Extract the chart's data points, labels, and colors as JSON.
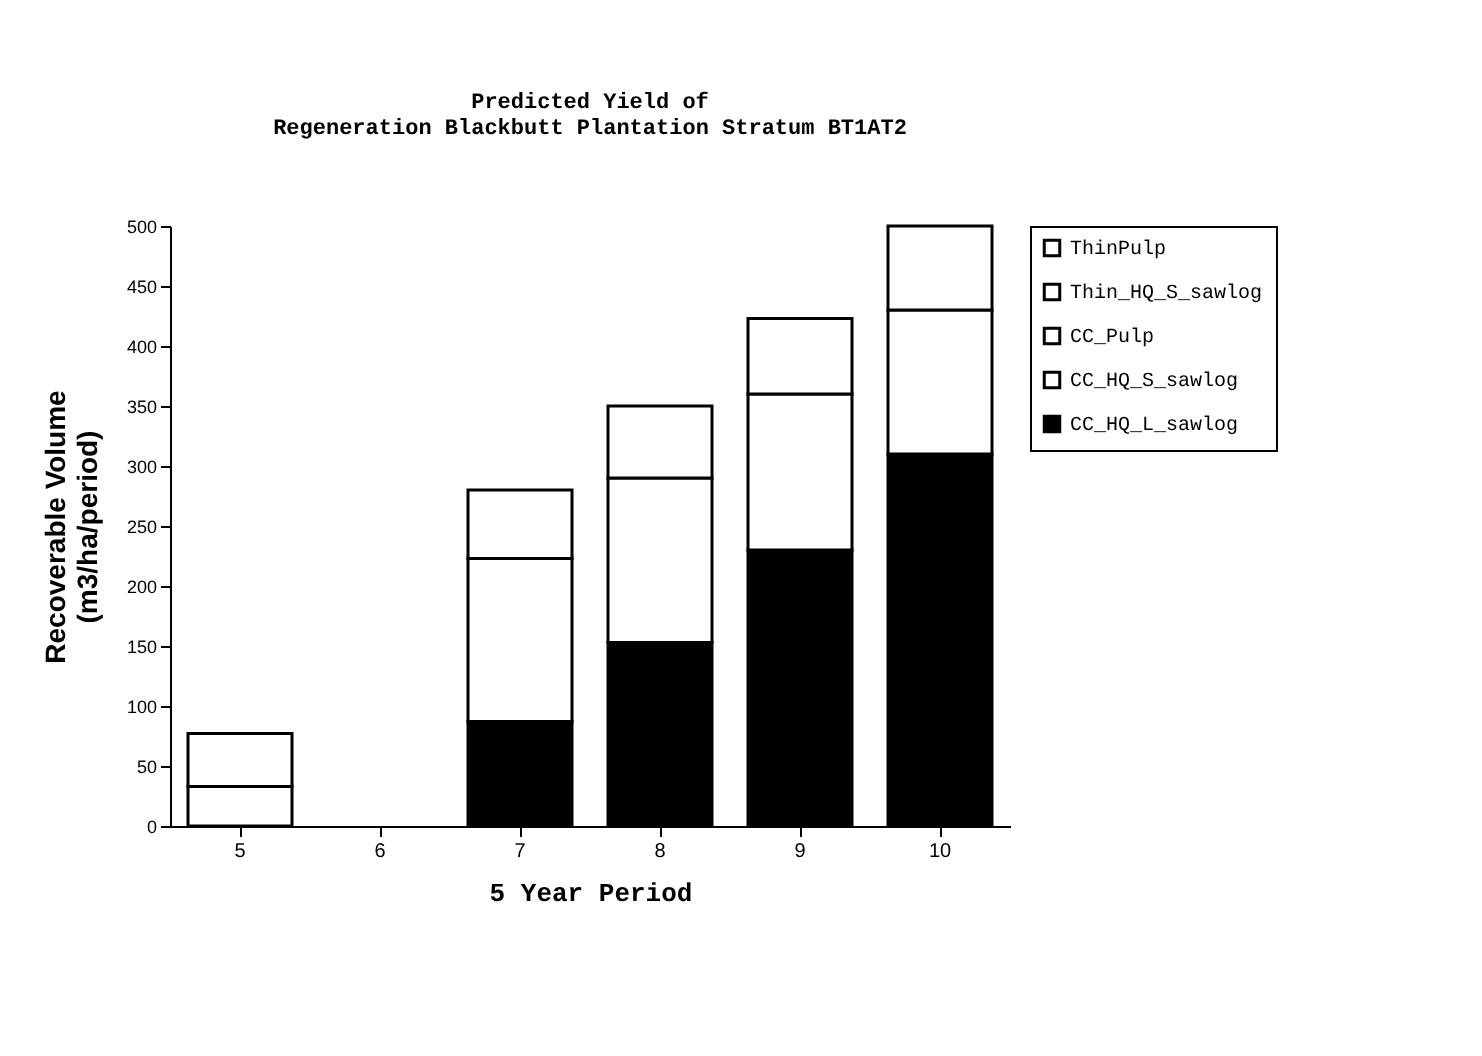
{
  "chart_data": {
    "type": "bar",
    "stacked": true,
    "title": "Predicted Yield of\nRegeneration Blackbutt Plantation Stratum BT1AT2",
    "xlabel": "5 Year Period",
    "ylabel": "Recoverable Volume\n(m3/ha/period)",
    "categories": [
      "5",
      "6",
      "7",
      "8",
      "9",
      "10"
    ],
    "series": [
      {
        "name": "CC_HQ_L_sawlog",
        "color": "#000000",
        "values": [
          0,
          0,
          87,
          153,
          230,
          310
        ]
      },
      {
        "name": "CC_HQ_S_sawlog",
        "color": "#ffffff",
        "values": [
          0,
          0,
          136,
          137,
          130,
          120
        ]
      },
      {
        "name": "CC_Pulp",
        "color": "#ffffff",
        "values": [
          0,
          0,
          57,
          60,
          63,
          70
        ]
      },
      {
        "name": "Thin_HQ_S_sawlog",
        "color": "#ffffff",
        "values": [
          33,
          0,
          0,
          0,
          0,
          0
        ]
      },
      {
        "name": "ThinPulp",
        "color": "#ffffff",
        "values": [
          44,
          0,
          0,
          0,
          0,
          0
        ]
      }
    ],
    "ylim": [
      0,
      500
    ],
    "yticks": [
      0,
      50,
      100,
      150,
      200,
      250,
      300,
      350,
      400,
      450,
      500
    ],
    "grid": false,
    "legend": "right"
  }
}
